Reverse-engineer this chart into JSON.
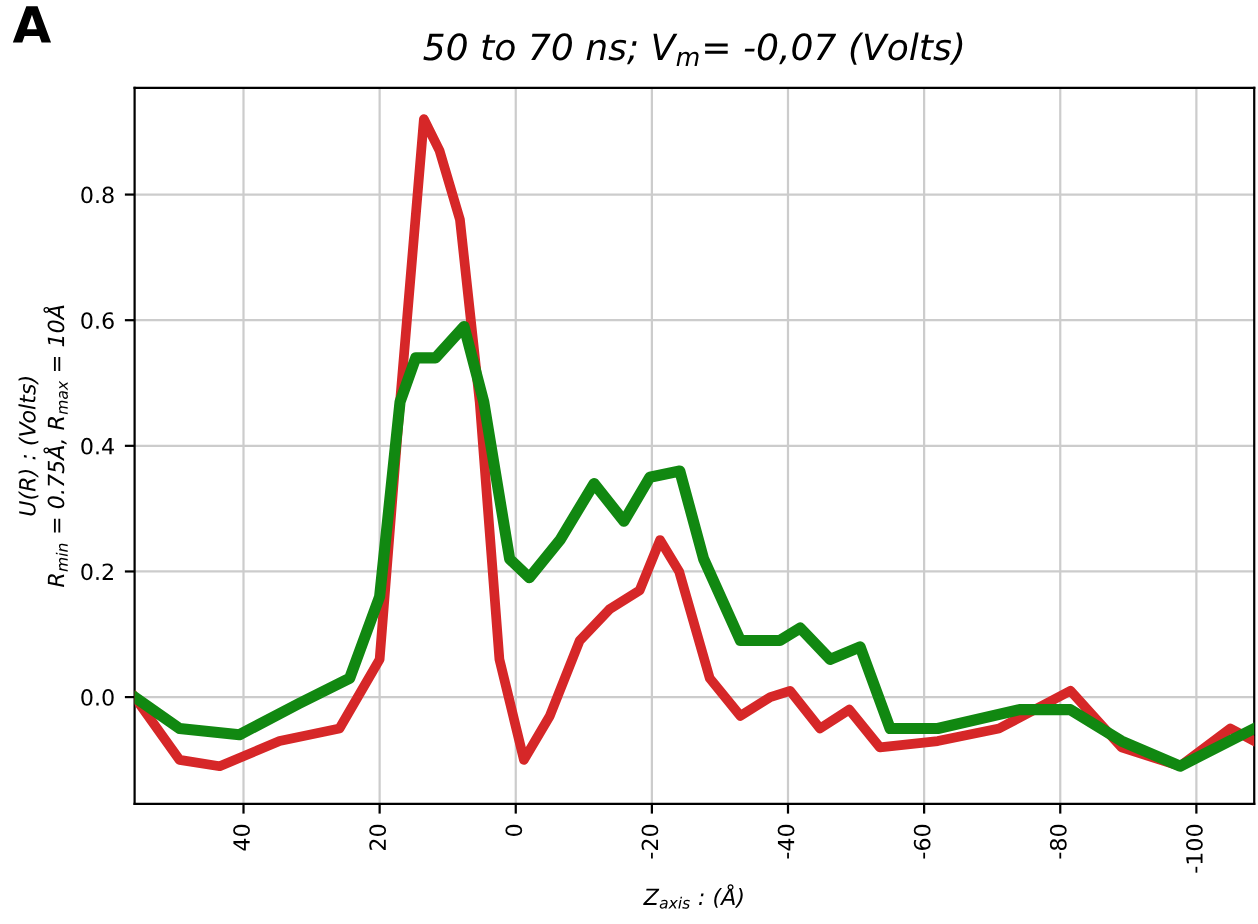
{
  "chart_data": {
    "type": "line",
    "title": "50 to 70 ns; V$_{m}$= -0,07 (Volts)",
    "xlabel": "Z$_{axis}$ : (Å)",
    "ylabel": "U(R) : (Volts)\nR$_{min}$ = 0.75Å, R$_{max}$ = 10Å",
    "annotations": [
      "A"
    ],
    "series": [
      {
        "color": "#d62728",
        "x": [
          56,
          49.4,
          43.5,
          34.7,
          25.9,
          20,
          17,
          13.5,
          11.2,
          8.2,
          5.3,
          2.4,
          -1.2,
          -5,
          -9.4,
          -13.8,
          -18.2,
          -21.2,
          -24,
          -28.5,
          -33,
          -37.4,
          -40.3,
          -44.7,
          -49,
          -53.5,
          -62,
          -71,
          -81.5,
          -89,
          -97.6,
          -105,
          -108.5
        ],
        "values": [
          0.0,
          -0.1,
          -0.11,
          -0.07,
          -0.05,
          0.06,
          0.47,
          0.92,
          0.87,
          0.76,
          0.47,
          0.06,
          -0.1,
          -0.03,
          0.09,
          0.14,
          0.17,
          0.25,
          0.2,
          0.03,
          -0.03,
          0.0,
          0.01,
          -0.05,
          -0.02,
          -0.08,
          -0.07,
          -0.05,
          0.01,
          -0.08,
          -0.11,
          -0.05,
          -0.07
        ]
      },
      {
        "color": "#118811",
        "x": [
          56,
          49.4,
          40.6,
          31.8,
          24.4,
          20,
          17,
          14.7,
          11.8,
          7.6,
          4.7,
          0.9,
          -2,
          -6.5,
          -11.5,
          -15.9,
          -19.7,
          -24.1,
          -27.6,
          -33,
          -38.8,
          -41.8,
          -46.2,
          -50.6,
          -55,
          -62,
          -74,
          -81.5,
          -89,
          -97.6,
          -108.5
        ],
        "values": [
          0.0,
          -0.05,
          -0.06,
          -0.01,
          0.03,
          0.16,
          0.47,
          0.54,
          0.54,
          0.59,
          0.47,
          0.22,
          0.19,
          0.25,
          0.34,
          0.28,
          0.35,
          0.36,
          0.22,
          0.09,
          0.09,
          0.11,
          0.06,
          0.08,
          -0.05,
          -0.05,
          -0.02,
          -0.02,
          -0.07,
          -0.11,
          -0.05
        ]
      }
    ],
    "xlim": [
      56,
      -108.5
    ],
    "xticks": [
      40,
      20,
      0,
      -20,
      -40,
      -60,
      -80,
      -100
    ],
    "ylim": [
      -0.17,
      0.97
    ],
    "yticks": [
      {
        "value": 0,
        "label": "0.0"
      },
      {
        "value": 0.2,
        "label": "0.2"
      },
      {
        "value": 0.4,
        "label": "0.4"
      },
      {
        "value": 0.6,
        "label": "0.6"
      },
      {
        "value": 0.8,
        "label": "0.8"
      }
    ],
    "grid": true,
    "legend": false,
    "marker": "none",
    "line_style": "solid"
  }
}
